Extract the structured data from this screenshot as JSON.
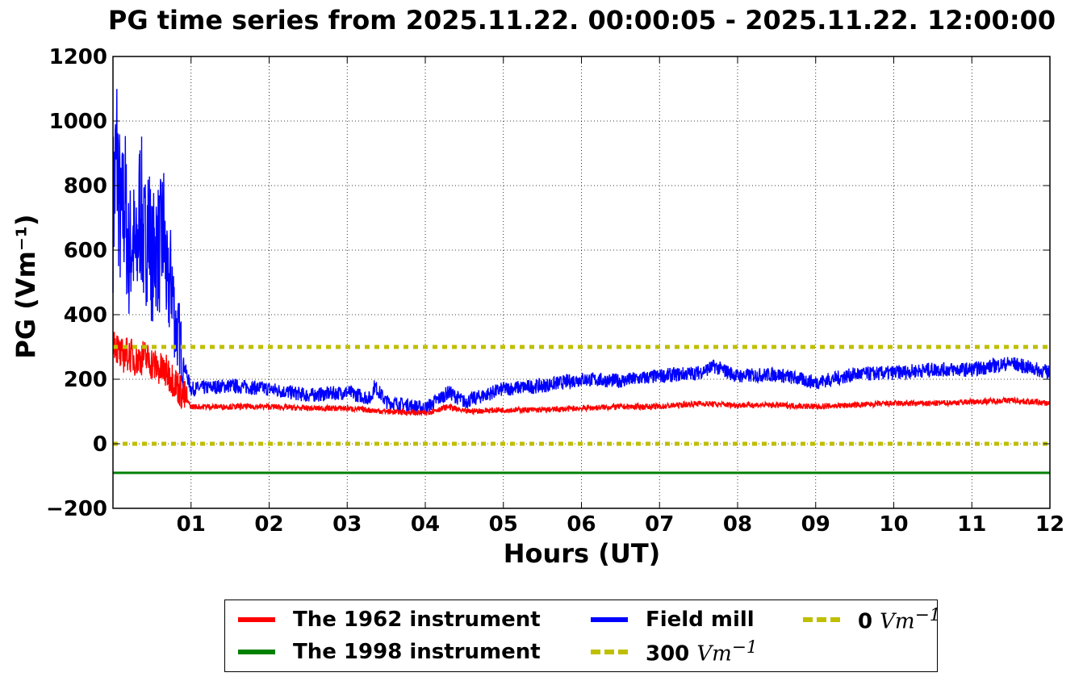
{
  "chart_data": {
    "type": "line",
    "title": "PG time series from 2025.11.22. 00:00:05 - 2025.11.22. 12:00:00",
    "xlabel": "Hours (UT)",
    "ylabel": "PG (Vm⁻¹)",
    "xlim": [
      0,
      12
    ],
    "ylim": [
      -200,
      1200
    ],
    "x_ticks": [
      "01",
      "02",
      "03",
      "04",
      "05",
      "06",
      "07",
      "08",
      "09",
      "10",
      "11",
      "12"
    ],
    "y_ticks": [
      "1200",
      "1000",
      "800",
      "600",
      "400",
      "200",
      "0",
      "−200"
    ],
    "grid": true,
    "legend_position": "bottom-center",
    "series": [
      {
        "name": "The 1962 instrument",
        "color": "#ff0000",
        "style": "solid",
        "x": [
          0.0,
          0.1,
          0.2,
          0.3,
          0.4,
          0.5,
          0.6,
          0.7,
          0.8,
          0.9,
          1.0,
          1.5,
          2.0,
          2.5,
          3.0,
          3.5,
          4.0,
          4.3,
          4.5,
          5.0,
          5.5,
          6.0,
          6.5,
          7.0,
          7.5,
          8.0,
          8.5,
          9.0,
          9.5,
          10.0,
          10.5,
          11.0,
          11.5,
          12.0
        ],
        "y": [
          330,
          270,
          280,
          260,
          270,
          250,
          230,
          220,
          190,
          150,
          115,
          115,
          115,
          110,
          110,
          100,
          95,
          115,
          100,
          105,
          105,
          110,
          115,
          115,
          125,
          120,
          120,
          115,
          120,
          125,
          125,
          130,
          135,
          125
        ]
      },
      {
        "name": "The 1998 instrument",
        "color": "#008000",
        "style": "solid",
        "x": [
          0,
          12
        ],
        "y": [
          -90,
          -90
        ]
      },
      {
        "name": "Field mill",
        "color": "#0000ff",
        "style": "solid",
        "x": [
          0.0,
          0.05,
          0.1,
          0.15,
          0.2,
          0.25,
          0.3,
          0.35,
          0.4,
          0.45,
          0.5,
          0.55,
          0.6,
          0.65,
          0.7,
          0.75,
          0.8,
          0.85,
          0.9,
          0.95,
          1.0,
          1.5,
          2.0,
          2.5,
          3.0,
          3.3,
          3.35,
          3.5,
          4.0,
          4.3,
          4.5,
          5.0,
          5.5,
          6.0,
          6.5,
          7.0,
          7.5,
          7.7,
          8.0,
          8.5,
          9.0,
          9.5,
          10.0,
          10.5,
          11.0,
          11.5,
          12.0
        ],
        "y": [
          720,
          900,
          660,
          760,
          580,
          640,
          560,
          760,
          600,
          700,
          560,
          620,
          600,
          660,
          460,
          520,
          360,
          330,
          250,
          210,
          170,
          180,
          170,
          150,
          160,
          140,
          180,
          130,
          110,
          160,
          130,
          170,
          180,
          200,
          195,
          210,
          220,
          240,
          210,
          215,
          190,
          215,
          220,
          230,
          230,
          250,
          220
        ]
      },
      {
        "name": "300 Vm⁻¹",
        "color": "#bfbf00",
        "style": "dotted",
        "x": [
          0,
          12
        ],
        "y": [
          300,
          300
        ]
      },
      {
        "name": "0 Vm⁻¹",
        "color": "#bfbf00",
        "style": "dotted",
        "x": [
          0,
          12
        ],
        "y": [
          0,
          0
        ]
      }
    ]
  },
  "legend": {
    "items": [
      {
        "label": "The 1962 instrument",
        "unit": "",
        "color": "#ff0000",
        "style": "solid"
      },
      {
        "label": "Field mill",
        "unit": "",
        "color": "#0000ff",
        "style": "solid"
      },
      {
        "label": "0 ",
        "unit": "Vm",
        "color": "#bfbf00",
        "style": "dotted"
      },
      {
        "label": "The 1998 instrument",
        "unit": "",
        "color": "#008000",
        "style": "solid"
      },
      {
        "label": "300 ",
        "unit": "Vm",
        "color": "#bfbf00",
        "style": "dotted"
      }
    ]
  }
}
